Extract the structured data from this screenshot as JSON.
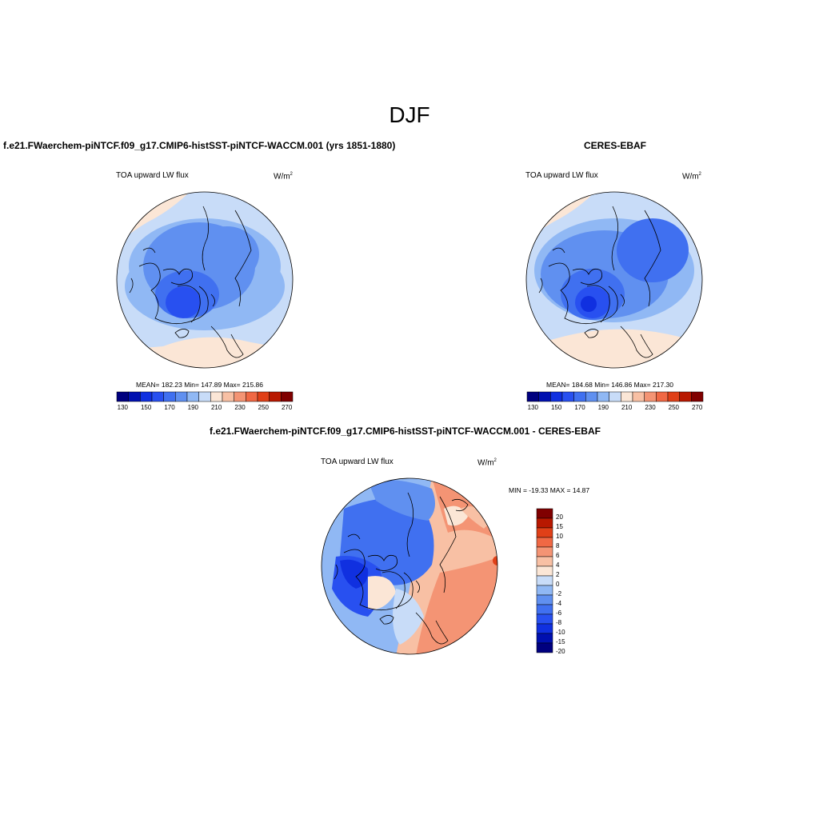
{
  "figure_title": "DJF",
  "units_base": "W/m",
  "units_exp": "2",
  "panels": {
    "model": {
      "title": "f.e21.FWaerchem-piNTCF.f09_g17.CMIP6-histSST-piNTCF-WACCM.001 (yrs 1851-1880)",
      "variable": "TOA upward LW flux",
      "stats": "MEAN= 182.23   Min= 147.89   Max= 215.86"
    },
    "obs": {
      "title": "CERES-EBAF",
      "variable": "TOA upward LW flux",
      "stats": "MEAN= 184.68   Min= 146.86   Max= 217.30"
    },
    "diff": {
      "title": "f.e21.FWaerchem-piNTCF.f09_g17.CMIP6-histSST-piNTCF-WACCM.001 - CERES-EBAF",
      "variable": "TOA upward LW flux",
      "stats": "MIN = -19.33 MAX =  14.87"
    }
  },
  "colors": {
    "abs_scale": [
      "#00007f",
      "#0010b0",
      "#1030e0",
      "#2850f0",
      "#4070f0",
      "#6090f0",
      "#90b8f4",
      "#c8dcf8",
      "#fbe6d6",
      "#f8c0a4",
      "#f49474",
      "#f06844",
      "#e04018",
      "#b81800",
      "#800000"
    ],
    "diff_scale": [
      "#00007f",
      "#0010b0",
      "#1030e0",
      "#2850f0",
      "#4070f0",
      "#6090f0",
      "#90b8f4",
      "#c8dcf8",
      "#fbe6d6",
      "#f8c0a4",
      "#f49474",
      "#f06844",
      "#e04018",
      "#b81800",
      "#800000"
    ],
    "land_outline": "#000000"
  },
  "chart_data": [
    {
      "type": "heatmap",
      "projection": "north polar stereographic",
      "title": "f.e21.FWaerchem-piNTCF.f09_g17.CMIP6-histSST-piNTCF-WACCM.001 (yrs 1851-1880)",
      "variable": "TOA upward LW flux",
      "units": "W/m2",
      "mean": 182.23,
      "min": 147.89,
      "max": 215.86,
      "colorbar_levels": [
        130,
        140,
        150,
        160,
        170,
        180,
        190,
        200,
        210,
        220,
        230,
        240,
        250,
        260,
        270
      ],
      "colorbar_labels": [
        "130",
        "150",
        "170",
        "190",
        "210",
        "230",
        "250",
        "270"
      ]
    },
    {
      "type": "heatmap",
      "projection": "north polar stereographic",
      "title": "CERES-EBAF",
      "variable": "TOA upward LW flux",
      "units": "W/m2",
      "mean": 184.68,
      "min": 146.86,
      "max": 217.3,
      "colorbar_levels": [
        130,
        140,
        150,
        160,
        170,
        180,
        190,
        200,
        210,
        220,
        230,
        240,
        250,
        260,
        270
      ],
      "colorbar_labels": [
        "130",
        "150",
        "170",
        "190",
        "210",
        "230",
        "250",
        "270"
      ]
    },
    {
      "type": "heatmap",
      "projection": "north polar stereographic",
      "title": "f.e21.FWaerchem-piNTCF.f09_g17.CMIP6-histSST-piNTCF-WACCM.001 - CERES-EBAF",
      "variable": "TOA upward LW flux",
      "units": "W/m2",
      "min": -19.33,
      "max": 14.87,
      "colorbar_labels": [
        "20",
        "15",
        "10",
        "8",
        "6",
        "4",
        "2",
        "0",
        "-2",
        "-4",
        "-6",
        "-8",
        "-10",
        "-15",
        "-20"
      ]
    }
  ]
}
